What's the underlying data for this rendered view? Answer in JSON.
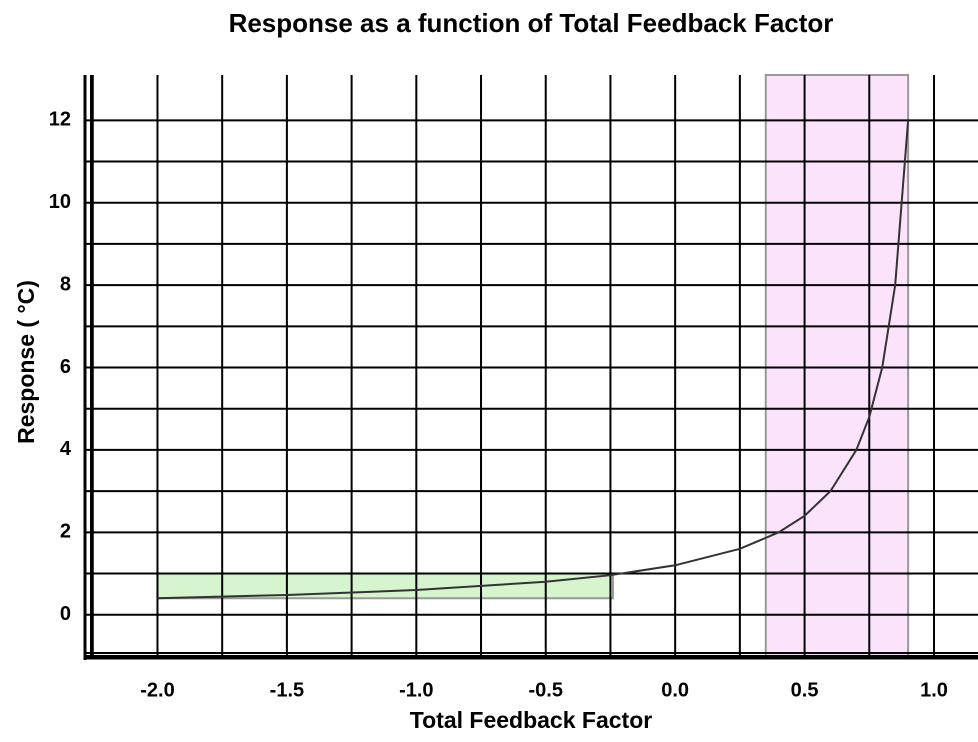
{
  "chart_data": {
    "type": "line",
    "title": "Response as a function of Total Feedback Factor",
    "xlabel": "Total Feedback Factor",
    "ylabel": "Response ( °C)",
    "x": [
      -2.0,
      -1.5,
      -1.0,
      -0.5,
      -0.25,
      0.0,
      0.25,
      0.4,
      0.5,
      0.6,
      0.7,
      0.75,
      0.8,
      0.85,
      0.9
    ],
    "series": [
      {
        "color": "#333333",
        "values": [
          0.4,
          0.48,
          0.6,
          0.8,
          0.96,
          1.2,
          1.6,
          2.0,
          2.4,
          3.0,
          4.0,
          4.8,
          6.0,
          8.0,
          12.0
        ]
      }
    ],
    "xlim": [
      -2.28,
      1.17
    ],
    "ylim": [
      -1.05,
      13.1
    ],
    "xticks": [
      {
        "value": -2.0,
        "label": "-2.0"
      },
      {
        "value": -1.5,
        "label": "-1.5"
      },
      {
        "value": -1.0,
        "label": "-1.0"
      },
      {
        "value": -0.5,
        "label": "-0.5"
      },
      {
        "value": 0.0,
        "label": "0.0"
      },
      {
        "value": 0.5,
        "label": "0.5"
      },
      {
        "value": 1.0,
        "label": "1.0"
      }
    ],
    "xminor_ticks": [
      -2.25,
      -1.75,
      -1.25,
      -0.75,
      -0.25,
      0.25,
      0.75
    ],
    "yticks": [
      0,
      2,
      4,
      6,
      8,
      10,
      12
    ],
    "yminor_ticks": [
      -1,
      1,
      3,
      5,
      7,
      9,
      11
    ],
    "grid": true,
    "spans": [
      {
        "x": [
          0.35,
          0.9
        ],
        "color": "#fbe3fb"
      }
    ],
    "boxes": [
      {
        "x": [
          -2.0,
          -0.24
        ],
        "y": [
          0.4,
          1.0
        ],
        "color": "#d6f5cf"
      }
    ]
  }
}
